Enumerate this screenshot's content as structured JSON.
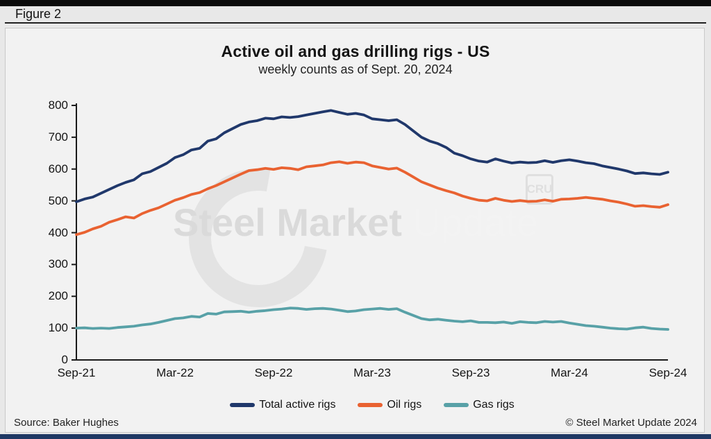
{
  "header": {
    "figure_label": "Figure 2"
  },
  "watermark": {
    "part1": "Steel Market",
    "part2": "Update",
    "cru": "CRU"
  },
  "footer": {
    "source": "Source: Baker Hughes",
    "copyright": "© Steel Market Update 2024"
  },
  "colors": {
    "total": "#20386b",
    "oil": "#e96231",
    "gas": "#58a1a7",
    "axis": "#1a1a1a",
    "bottom_bar": "#1f3864"
  },
  "chart_data": {
    "type": "line",
    "title": "Active oil and gas drilling rigs - US",
    "subtitle": "weekly counts as of Sept. 20, 2024",
    "xlabel": "",
    "ylabel": "",
    "grid": false,
    "legend_position": "bottom",
    "ylim": [
      0,
      800
    ],
    "y_ticks": [
      0,
      100,
      200,
      300,
      400,
      500,
      600,
      700,
      800
    ],
    "x_unit": "months since Sep-2021, weekly counts sampled biweekly",
    "x_step": 0.5,
    "x_range": [
      0,
      36
    ],
    "x_ticks": [
      {
        "pos": 0,
        "label": "Sep-21"
      },
      {
        "pos": 6,
        "label": "Mar-22"
      },
      {
        "pos": 12,
        "label": "Sep-22"
      },
      {
        "pos": 18,
        "label": "Mar-23"
      },
      {
        "pos": 24,
        "label": "Sep-23"
      },
      {
        "pos": 30,
        "label": "Mar-24"
      },
      {
        "pos": 36,
        "label": "Sep-24"
      }
    ],
    "series": [
      {
        "name": "Total active rigs",
        "color": "#20386b",
        "values": [
          497,
          506,
          512,
          524,
          536,
          548,
          558,
          566,
          585,
          592,
          605,
          618,
          636,
          645,
          660,
          665,
          688,
          695,
          714,
          727,
          740,
          748,
          752,
          760,
          758,
          764,
          762,
          765,
          770,
          775,
          780,
          784,
          778,
          772,
          775,
          770,
          758,
          755,
          752,
          755,
          740,
          720,
          700,
          688,
          680,
          668,
          650,
          642,
          632,
          625,
          622,
          632,
          625,
          619,
          622,
          620,
          621,
          626,
          621,
          626,
          629,
          625,
          620,
          617,
          610,
          605,
          600,
          594,
          586,
          588,
          585,
          583,
          590
        ]
      },
      {
        "name": "Oil rigs",
        "color": "#e96231",
        "values": [
          394,
          401,
          412,
          420,
          433,
          441,
          450,
          446,
          460,
          470,
          478,
          490,
          502,
          510,
          520,
          526,
          538,
          548,
          560,
          572,
          584,
          595,
          598,
          602,
          599,
          604,
          602,
          598,
          607,
          610,
          613,
          620,
          623,
          618,
          622,
          620,
          610,
          605,
          600,
          603,
          590,
          575,
          560,
          550,
          540,
          532,
          525,
          515,
          508,
          502,
          500,
          508,
          502,
          498,
          501,
          498,
          499,
          503,
          499,
          505,
          506,
          508,
          511,
          508,
          505,
          500,
          496,
          490,
          483,
          485,
          482,
          480,
          488
        ]
      },
      {
        "name": "Gas rigs",
        "color": "#58a1a7",
        "values": [
          100,
          101,
          99,
          100,
          99,
          102,
          104,
          106,
          110,
          113,
          118,
          124,
          130,
          132,
          137,
          135,
          146,
          144,
          151,
          152,
          153,
          150,
          153,
          155,
          158,
          160,
          163,
          162,
          159,
          161,
          162,
          160,
          156,
          152,
          154,
          158,
          160,
          162,
          159,
          161,
          150,
          140,
          130,
          126,
          128,
          125,
          122,
          120,
          123,
          118,
          118,
          117,
          119,
          115,
          120,
          118,
          117,
          121,
          119,
          121,
          116,
          112,
          108,
          106,
          103,
          100,
          98,
          97,
          101,
          103,
          99,
          97,
          96
        ]
      }
    ]
  }
}
